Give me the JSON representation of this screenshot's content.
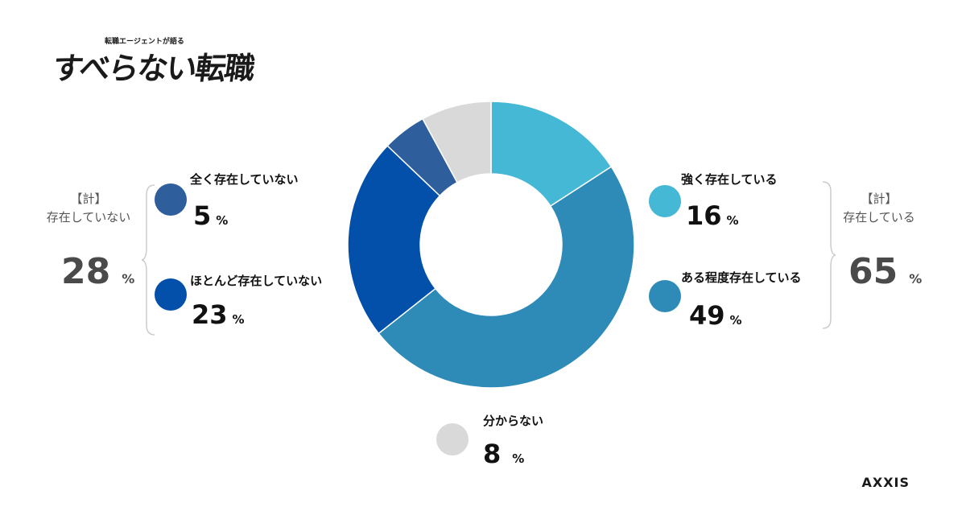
{
  "logo": {
    "small_text": "転職エージェントが語る",
    "main_text": "すべらない転職"
  },
  "brand": "AXXIS",
  "colors": {
    "strongly_exists": "#45B8D5",
    "somewhat_exists": "#2E8BB8",
    "mostly_not": "#0350AA",
    "not_at_all": "#2E5E9C",
    "unknown": "#D9D9D9"
  },
  "items": {
    "not_at_all": {
      "label": "全く存在していない",
      "value": "5",
      "unit": "%"
    },
    "mostly_not": {
      "label": "ほとんど存在していない",
      "value": "23",
      "unit": "%"
    },
    "strongly_exists": {
      "label": "強く存在している",
      "value": "16",
      "unit": "%"
    },
    "somewhat_exists": {
      "label": "ある程度存在している",
      "value": "49",
      "unit": "%"
    },
    "unknown": {
      "label": "分からない",
      "value": "8",
      "unit": "%"
    }
  },
  "totals": {
    "not_exist": {
      "tag": "【計】",
      "label": "存在していない",
      "value": "28",
      "unit": "%"
    },
    "exist": {
      "tag": "【計】",
      "label": "存在している",
      "value": "65",
      "unit": "%"
    }
  },
  "chart_data": {
    "type": "pie",
    "donut": true,
    "start_angle_deg": 0,
    "direction": "clockwise",
    "categories": [
      "強く存在している",
      "ある程度存在している",
      "ほとんど存在していない",
      "全く存在していない",
      "分からない"
    ],
    "values": [
      16,
      49,
      23,
      5,
      8
    ],
    "colors": [
      "#45B8D5",
      "#2E8BB8",
      "#0350AA",
      "#2E5E9C",
      "#D9D9D9"
    ],
    "unit": "%"
  }
}
